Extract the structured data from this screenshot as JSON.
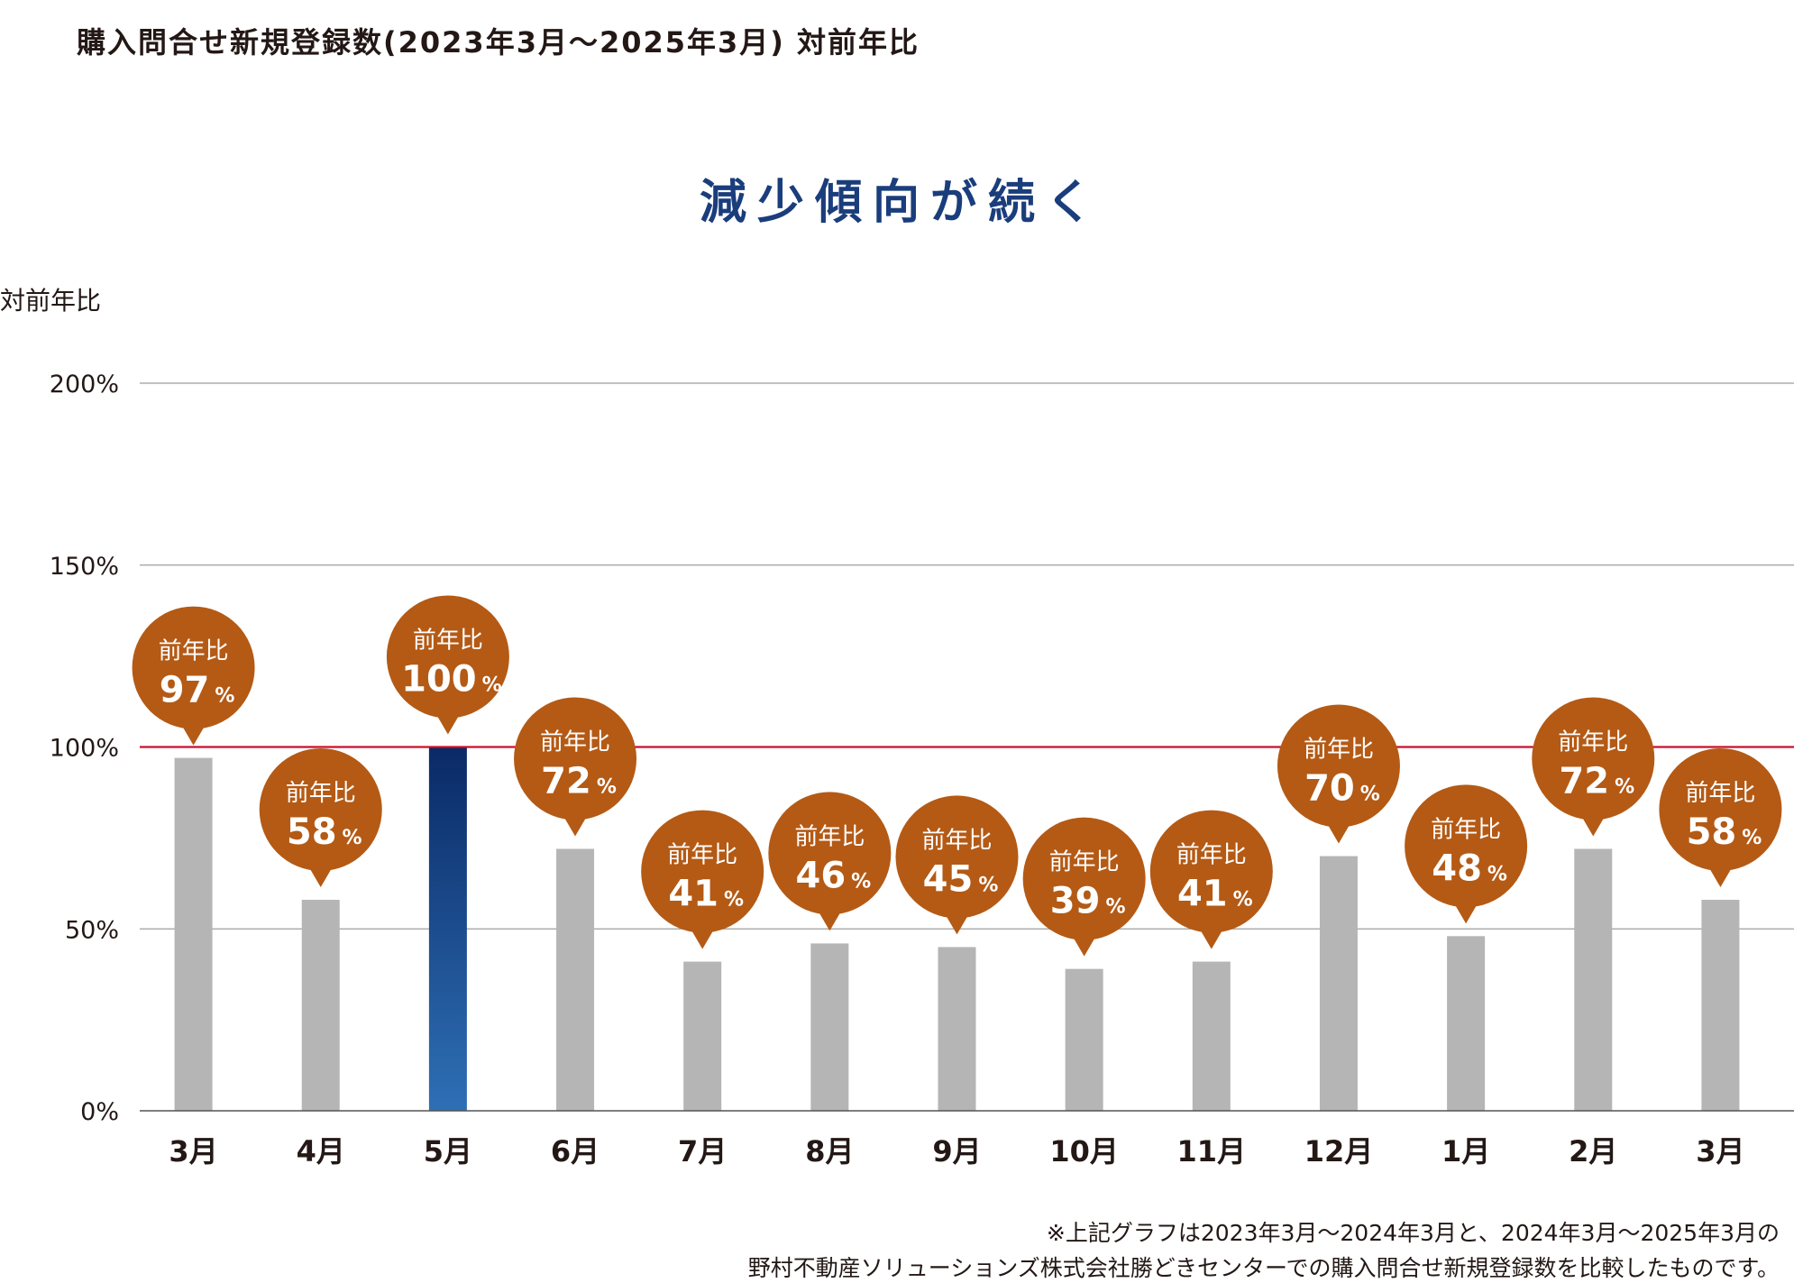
{
  "header": {
    "title": "購入問合せ新規登録数(2023年3月～2025年3月) 対前年比",
    "headline": "減少傾向が続く"
  },
  "colors": {
    "bar_default": "#b5b5b5",
    "bar_highlight_top": "#0a2a66",
    "bar_highlight_bottom": "#2e6fb5",
    "bubble": "#b45a15",
    "reference_line": "#c8102e",
    "gridline": "#9e9e9e",
    "headline": "#1a3d7c"
  },
  "chart_data": {
    "type": "bar",
    "ylabel": "対前年比",
    "ylim": [
      0,
      200
    ],
    "yticks": [
      0,
      50,
      100,
      150,
      200
    ],
    "ytick_labels": [
      "0%",
      "50%",
      "100%",
      "150%",
      "200%"
    ],
    "reference_line": 100,
    "categories": [
      "3月",
      "4月",
      "5月",
      "6月",
      "7月",
      "8月",
      "9月",
      "10月",
      "11月",
      "12月",
      "1月",
      "2月",
      "3月"
    ],
    "values": [
      97,
      58,
      100,
      72,
      41,
      46,
      45,
      39,
      41,
      70,
      48,
      72,
      58
    ],
    "highlight_index": 2,
    "bubble_label": "前年比",
    "bubble_unit": "%",
    "grid": true
  },
  "footnote": {
    "line1": "※上記グラフは2023年3月～2024年3月と、2024年3月～2025年3月の",
    "line2": "野村不動産ソリューションズ株式会社勝どきセンターでの購入問合せ新規登録数を比較したものです。"
  }
}
